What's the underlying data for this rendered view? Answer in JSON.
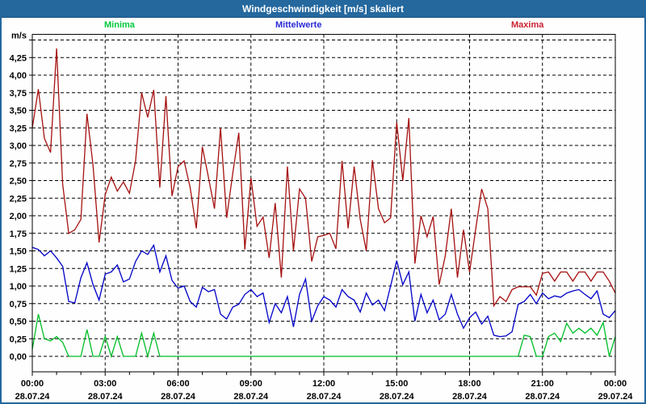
{
  "window": {
    "title": "Windgeschwindigkeit [m/s] skaliert"
  },
  "legend": {
    "minima": "Minima",
    "mittelwerte": "Mittelwerte",
    "maxima": "Maxima"
  },
  "axis": {
    "unit_label": "m/s"
  },
  "colors": {
    "frame": "#24689E",
    "titlebar_bg": "#24689E",
    "titlebar_text": "#FFFFFF",
    "grid": "#000000",
    "minima": "#00BE28",
    "mittelwerte": "#0000C8",
    "maxima": "#A61111"
  },
  "chart_data": {
    "type": "line",
    "title": "Windgeschwindigkeit [m/s] skaliert",
    "ylabel": "m/s",
    "ylim": [
      -0.22,
      4.58
    ],
    "y_grid_step": 0.25,
    "y_grid_max": 4.5,
    "y_tick_label_max": 4.25,
    "x_unit": "hours",
    "x_start_hour": 0,
    "x_end_hour": 24,
    "x_step_hours": 0.25,
    "x_grid_step_hours": 3,
    "x_minor_tick_hours": 1,
    "grid": "dashed",
    "legend_position": "top",
    "x_ticks": [
      {
        "hour": 0,
        "time": "00:00",
        "date": "28.07.24"
      },
      {
        "hour": 3,
        "time": "03:00",
        "date": "28.07.24"
      },
      {
        "hour": 6,
        "time": "06:00",
        "date": "28.07.24"
      },
      {
        "hour": 9,
        "time": "09:00",
        "date": "28.07.24"
      },
      {
        "hour": 12,
        "time": "12:00",
        "date": "28.07.24"
      },
      {
        "hour": 15,
        "time": "15:00",
        "date": "28.07.24"
      },
      {
        "hour": 18,
        "time": "18:00",
        "date": "28.07.24"
      },
      {
        "hour": 21,
        "time": "21:00",
        "date": "28.07.24"
      },
      {
        "hour": 24,
        "time": "00:00",
        "date": "29.07.24"
      }
    ],
    "series": [
      {
        "name": "Maxima",
        "color": "#A61111",
        "values": [
          3.25,
          3.8,
          3.1,
          2.9,
          4.38,
          2.45,
          1.75,
          1.8,
          1.95,
          3.45,
          2.72,
          1.62,
          2.3,
          2.55,
          2.35,
          2.48,
          2.32,
          2.78,
          3.75,
          3.4,
          3.79,
          2.4,
          3.7,
          2.28,
          2.7,
          2.78,
          2.4,
          1.82,
          2.98,
          2.55,
          2.1,
          3.25,
          1.97,
          2.6,
          3.18,
          1.52,
          2.54,
          1.85,
          1.98,
          1.4,
          2.18,
          1.12,
          2.7,
          1.5,
          2.38,
          2.25,
          1.35,
          1.7,
          1.72,
          1.75,
          1.53,
          2.78,
          1.82,
          2.7,
          1.95,
          1.5,
          2.79,
          2.1,
          1.9,
          1.97,
          3.33,
          2.5,
          3.39,
          1.32,
          2.0,
          1.7,
          1.99,
          1.02,
          1.43,
          2.1,
          1.12,
          1.8,
          1.2,
          1.8,
          2.38,
          2.1,
          0.72,
          0.85,
          0.78,
          0.95,
          0.99,
          0.99,
          0.99,
          0.87,
          1.18,
          1.2,
          1.07,
          1.2,
          1.2,
          1.07,
          1.2,
          1.2,
          1.07,
          1.2,
          1.2,
          1.07,
          0.9
        ]
      },
      {
        "name": "Mittelwerte",
        "color": "#0000C8",
        "values": [
          1.55,
          1.52,
          1.43,
          1.5,
          1.4,
          1.28,
          0.78,
          0.76,
          1.12,
          1.33,
          1.02,
          0.8,
          1.17,
          1.2,
          1.3,
          1.06,
          1.1,
          1.35,
          1.5,
          1.45,
          1.58,
          1.2,
          1.43,
          1.08,
          0.97,
          1.0,
          0.78,
          0.7,
          0.98,
          0.92,
          0.95,
          0.6,
          0.53,
          0.7,
          0.74,
          0.88,
          0.95,
          0.85,
          0.9,
          0.48,
          0.75,
          0.62,
          0.85,
          0.42,
          0.88,
          1.1,
          0.5,
          0.72,
          0.85,
          0.8,
          0.7,
          0.95,
          0.85,
          0.8,
          0.63,
          0.9,
          0.73,
          0.8,
          0.65,
          1.0,
          1.36,
          1.02,
          1.2,
          0.5,
          0.88,
          0.62,
          0.8,
          0.52,
          0.6,
          0.88,
          0.6,
          0.4,
          0.55,
          0.63,
          0.46,
          0.57,
          0.3,
          0.28,
          0.29,
          0.35,
          0.74,
          0.78,
          0.88,
          0.75,
          0.9,
          0.82,
          0.86,
          0.84,
          0.9,
          0.93,
          0.95,
          0.88,
          0.82,
          0.93,
          0.6,
          0.55,
          0.65
        ]
      },
      {
        "name": "Minima",
        "color": "#00BE28",
        "values": [
          0.1,
          0.6,
          0.25,
          0.22,
          0.28,
          0.2,
          0.0,
          0.0,
          0.0,
          0.38,
          0.0,
          0.0,
          0.28,
          0.0,
          0.28,
          0.0,
          0.0,
          0.0,
          0.33,
          0.0,
          0.33,
          0.0,
          0.0,
          0.0,
          0.0,
          0.0,
          0.0,
          0.0,
          0.0,
          0.0,
          0.0,
          0.0,
          0.0,
          0.0,
          0.0,
          0.0,
          0.0,
          0.0,
          0.0,
          0.0,
          0.0,
          0.0,
          0.0,
          0.0,
          0.0,
          0.0,
          0.0,
          0.0,
          0.0,
          0.0,
          0.0,
          0.0,
          0.0,
          0.0,
          0.0,
          0.0,
          0.0,
          0.0,
          0.0,
          0.0,
          0.0,
          0.0,
          0.0,
          0.0,
          0.0,
          0.0,
          0.0,
          0.0,
          0.0,
          0.0,
          0.0,
          0.0,
          0.0,
          0.0,
          0.0,
          0.0,
          0.0,
          0.0,
          0.0,
          0.0,
          0.0,
          0.3,
          0.28,
          0.0,
          0.0,
          0.28,
          0.33,
          0.21,
          0.47,
          0.33,
          0.4,
          0.33,
          0.4,
          0.3,
          0.48,
          0.0,
          0.28
        ]
      }
    ]
  }
}
